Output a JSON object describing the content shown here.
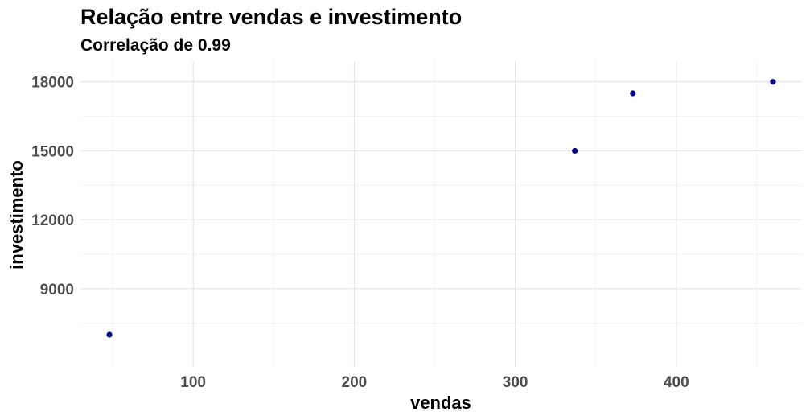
{
  "chart_data": {
    "type": "scatter",
    "title": "Relação entre vendas e investimento",
    "subtitle": "Correlação de 0.99",
    "xlabel": "vendas",
    "ylabel": "investimento",
    "xlim": [
      30,
      478
    ],
    "ylim": [
      5600,
      18900
    ],
    "x_ticks": [
      100,
      200,
      300,
      400
    ],
    "x_ticks_minor": [
      50,
      150,
      250,
      350,
      450
    ],
    "y_ticks": [
      9000,
      12000,
      15000,
      18000
    ],
    "y_ticks_minor": [
      7500,
      10500,
      13500,
      16500
    ],
    "grid": true,
    "legend": "none",
    "point_color": "#00008b",
    "points": [
      {
        "x": 48,
        "y": 7000
      },
      {
        "x": 337,
        "y": 15000
      },
      {
        "x": 373,
        "y": 17500
      },
      {
        "x": 460,
        "y": 18000
      }
    ]
  }
}
